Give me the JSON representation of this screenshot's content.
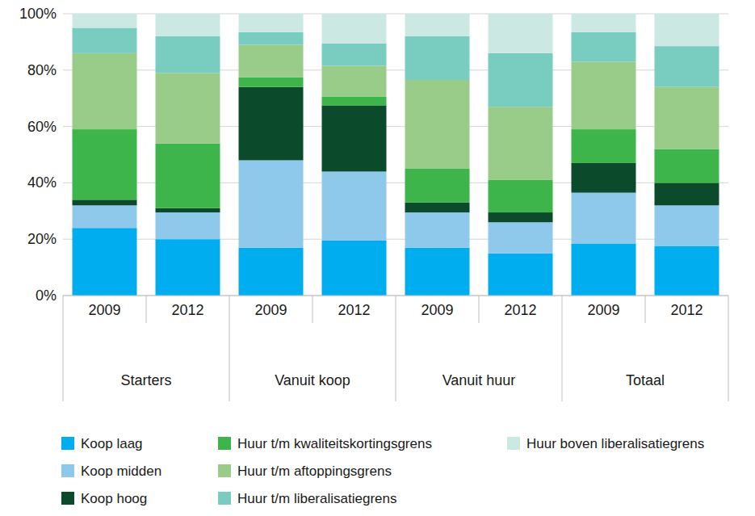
{
  "chart_data": {
    "type": "bar",
    "stacked": true,
    "grid": true,
    "legend": "bottom",
    "categories": [
      "2009",
      "2012",
      "2009",
      "2012",
      "2009",
      "2012",
      "2009",
      "2012"
    ],
    "category_groups": [
      "Starters",
      "Vanuit koop",
      "Vanuit huur",
      "Totaal"
    ],
    "ylim": [
      0,
      100
    ],
    "yticks": [
      {
        "value": 0,
        "label": "0%"
      },
      {
        "value": 20,
        "label": "20%"
      },
      {
        "value": 40,
        "label": "40%"
      },
      {
        "value": 60,
        "label": "60%"
      },
      {
        "value": 80,
        "label": "80%"
      },
      {
        "value": 100,
        "label": "100%"
      }
    ],
    "series": [
      {
        "name": "Koop laag",
        "color": "#00aeef",
        "values": [
          24,
          20,
          17,
          19.5,
          17,
          15,
          18.5,
          17.5
        ]
      },
      {
        "name": "Koop midden",
        "color": "#8ec9ec",
        "values": [
          8,
          9.5,
          31,
          24.5,
          12.5,
          11,
          18,
          14.5
        ]
      },
      {
        "name": "Koop hoog",
        "color": "#0b4a2a",
        "values": [
          2,
          1.5,
          26,
          23.5,
          3.5,
          3.5,
          10.5,
          8
        ]
      },
      {
        "name": "Huur t/m kwaliteitskortingsgrens",
        "color": "#3db54a",
        "values": [
          25,
          23,
          3.5,
          3,
          12,
          11.5,
          12,
          12
        ]
      },
      {
        "name": "Huur t/m aftoppingsgrens",
        "color": "#99cc88",
        "values": [
          27,
          25,
          11.5,
          11,
          31.5,
          26,
          24,
          22
        ]
      },
      {
        "name": "Huur t/m liberalisatiegrens",
        "color": "#79cdc0",
        "values": [
          9,
          13,
          4.5,
          8,
          15.5,
          19,
          10.5,
          14.5
        ]
      },
      {
        "name": "Huur boven liberalisatiegrens",
        "color": "#cbe9e2",
        "values": [
          5,
          8,
          6.5,
          10.5,
          8,
          14,
          6.5,
          11.5
        ]
      }
    ]
  }
}
